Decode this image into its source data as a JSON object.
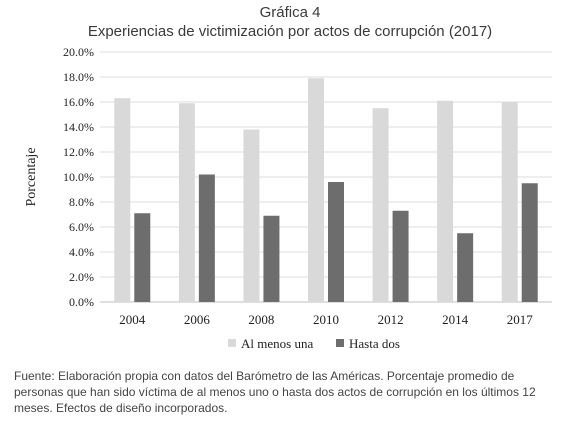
{
  "figure": {
    "label": "Gráfica 4",
    "title": "Experiencias de victimización por actos de corrupción (2017)",
    "caption": "Fuente: Elaboración propia con datos del Barómetro de las Américas. Porcentaje promedio de personas que han sido víctima de al menos uno o hasta dos actos de corrupción en los últimos 12 meses. Efectos de diseño incorporados."
  },
  "chart_data": {
    "type": "bar",
    "title": "Experiencias de victimización por actos de corrupción (2017)",
    "xlabel": "",
    "ylabel": "Porcentaje",
    "categories": [
      "2004",
      "2006",
      "2008",
      "2010",
      "2012",
      "2014",
      "2017"
    ],
    "series": [
      {
        "name": "Al menos una",
        "color": "#d9d9d9",
        "values": [
          16.3,
          15.9,
          13.8,
          17.9,
          15.5,
          16.1,
          16.0
        ]
      },
      {
        "name": "Hasta dos",
        "color": "#6d6d6d",
        "values": [
          7.1,
          10.2,
          6.9,
          9.6,
          7.3,
          5.5,
          9.5
        ]
      }
    ],
    "ylim": [
      0,
      20
    ],
    "yticks": [
      "0.0%",
      "2.0%",
      "4.0%",
      "6.0%",
      "8.0%",
      "10.0%",
      "12.0%",
      "14.0%",
      "16.0%",
      "18.0%",
      "20.0%"
    ],
    "grid": true,
    "legend_position": "bottom"
  }
}
